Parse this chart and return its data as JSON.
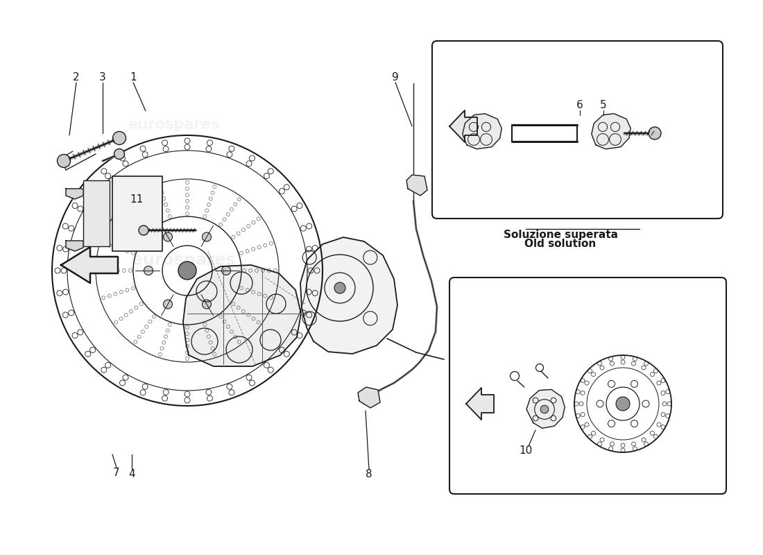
{
  "bg_color": "#ffffff",
  "line_color": "#1a1a1a",
  "watermark_color": "#cccccc",
  "watermark_text": "eurospares",
  "old_solution_it": "Soluzione superata",
  "old_solution_en": "Old solution",
  "fig_width": 11.0,
  "fig_height": 8.0,
  "dpi": 100
}
